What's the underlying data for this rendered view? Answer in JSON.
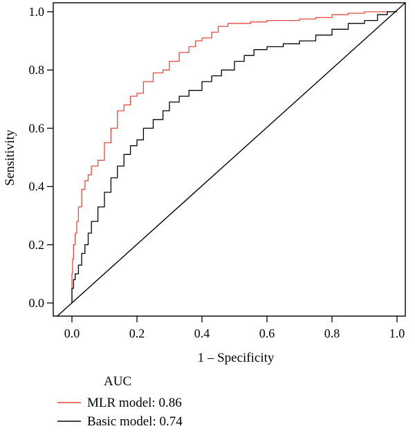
{
  "chart_data": {
    "type": "line",
    "title": "",
    "xlabel": "1 – Specificity",
    "ylabel": "Sensitivity",
    "xlim": [
      0.0,
      1.0
    ],
    "ylim": [
      0.0,
      1.0
    ],
    "x_ticks": [
      "0.0",
      "0.2",
      "0.4",
      "0.6",
      "0.8",
      "1.0"
    ],
    "y_ticks": [
      "0.0",
      "0.2",
      "0.4",
      "0.6",
      "0.8",
      "1.0"
    ],
    "grid": false,
    "legend": {
      "title": "AUC",
      "placement": "bottom-left",
      "entries": [
        "MLR model: 0.86",
        "Basic model: 0.74"
      ]
    },
    "colors": {
      "mlr": "#e8473f",
      "basic": "#000000",
      "reference": "#000000"
    },
    "series": [
      {
        "key": "mlr",
        "x": [
          0.0,
          0.002,
          0.005,
          0.01,
          0.015,
          0.02,
          0.03,
          0.04,
          0.05,
          0.06,
          0.08,
          0.1,
          0.12,
          0.14,
          0.16,
          0.18,
          0.2,
          0.22,
          0.25,
          0.28,
          0.3,
          0.33,
          0.36,
          0.38,
          0.4,
          0.43,
          0.45,
          0.48,
          0.5,
          0.55,
          0.6,
          0.65,
          0.7,
          0.75,
          0.8,
          0.85,
          0.9,
          0.95,
          1.0
        ],
        "y": [
          0.0,
          0.1,
          0.15,
          0.2,
          0.24,
          0.28,
          0.33,
          0.39,
          0.42,
          0.44,
          0.47,
          0.49,
          0.55,
          0.6,
          0.66,
          0.68,
          0.71,
          0.72,
          0.76,
          0.79,
          0.8,
          0.83,
          0.86,
          0.88,
          0.9,
          0.91,
          0.93,
          0.95,
          0.96,
          0.96,
          0.965,
          0.97,
          0.97,
          0.975,
          0.98,
          0.99,
          0.995,
          1.0,
          1.0
        ]
      },
      {
        "key": "basic",
        "x": [
          0.0,
          0.005,
          0.01,
          0.02,
          0.03,
          0.04,
          0.05,
          0.06,
          0.08,
          0.1,
          0.12,
          0.14,
          0.16,
          0.18,
          0.2,
          0.22,
          0.25,
          0.28,
          0.3,
          0.33,
          0.36,
          0.4,
          0.43,
          0.46,
          0.5,
          0.53,
          0.56,
          0.6,
          0.65,
          0.7,
          0.75,
          0.8,
          0.85,
          0.9,
          0.94,
          0.97,
          1.0
        ],
        "y": [
          0.0,
          0.05,
          0.08,
          0.1,
          0.13,
          0.17,
          0.2,
          0.24,
          0.28,
          0.33,
          0.38,
          0.43,
          0.47,
          0.51,
          0.54,
          0.56,
          0.6,
          0.63,
          0.66,
          0.69,
          0.71,
          0.73,
          0.76,
          0.78,
          0.8,
          0.83,
          0.85,
          0.87,
          0.88,
          0.89,
          0.9,
          0.92,
          0.94,
          0.96,
          0.97,
          0.99,
          1.0
        ]
      }
    ],
    "reference_line": {
      "x": [
        0.0,
        1.0
      ],
      "y": [
        0.0,
        1.0
      ]
    }
  }
}
